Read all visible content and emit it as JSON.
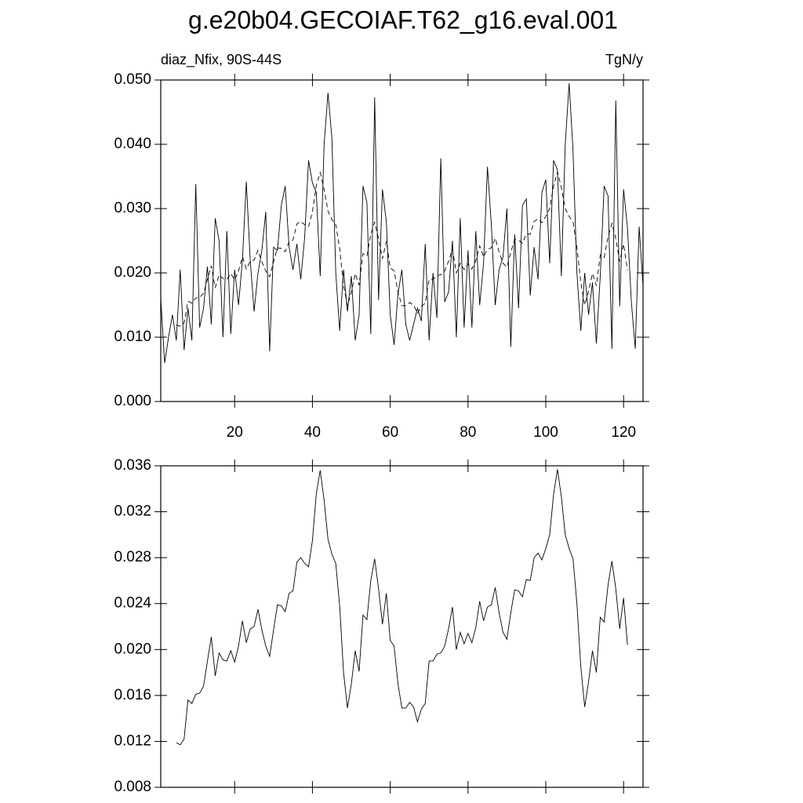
{
  "chart_data": [
    {
      "type": "line",
      "title": "g.e20b04.GECOIAF.T62_g16.eval.001",
      "subtitle": "diaz_Nfix, 90S-44S",
      "units": "TgN/y",
      "x": [
        1,
        2,
        3,
        4,
        5,
        6,
        7,
        8,
        9,
        10,
        11,
        12,
        13,
        14,
        15,
        16,
        17,
        18,
        19,
        20,
        21,
        22,
        23,
        24,
        25,
        26,
        27,
        28,
        29,
        30,
        31,
        32,
        33,
        34,
        35,
        36,
        37,
        38,
        39,
        40,
        41,
        42,
        43,
        44,
        45,
        46,
        47,
        48,
        49,
        50,
        51,
        52,
        53,
        54,
        55,
        56,
        57,
        58,
        59,
        60,
        61,
        62,
        63,
        64,
        65,
        66,
        67,
        68,
        69,
        70,
        71,
        72,
        73,
        74,
        75,
        76,
        77,
        78,
        79,
        80,
        81,
        82,
        83,
        84,
        85,
        86,
        87,
        88,
        89,
        90,
        91,
        92,
        93,
        94,
        95,
        96,
        97,
        98,
        99,
        100,
        101,
        102,
        103,
        104,
        105,
        106,
        107,
        108,
        109,
        110,
        111,
        112,
        113,
        114,
        115,
        116,
        117,
        118,
        119,
        120,
        121,
        122,
        123,
        124,
        125
      ],
      "xlim": [
        1,
        125
      ],
      "xticks": [
        20,
        40,
        60,
        80,
        100,
        120
      ],
      "ylim": [
        0,
        0.05
      ],
      "yticks": [
        {
          "value": 0,
          "label": "0.000"
        },
        {
          "value": 0.01,
          "label": "0.010"
        },
        {
          "value": 0.02,
          "label": "0.020"
        },
        {
          "value": 0.03,
          "label": "0.030"
        },
        {
          "value": 0.04,
          "label": "0.040"
        },
        {
          "value": 0.05,
          "label": "0.050"
        }
      ],
      "series": [
        {
          "color": "#000000",
          "dash": "solid",
          "values": [
            0.016,
            0.006,
            0.01,
            0.0135,
            0.0095,
            0.0205,
            0.008,
            0.0145,
            0.0095,
            0.0338,
            0.0115,
            0.0145,
            0.021,
            0.012,
            0.0285,
            0.025,
            0.01,
            0.0265,
            0.0105,
            0.0205,
            0.015,
            0.022,
            0.0342,
            0.022,
            0.014,
            0.02,
            0.0235,
            0.0295,
            0.0078,
            0.024,
            0.0235,
            0.0305,
            0.0335,
            0.024,
            0.0205,
            0.0245,
            0.019,
            0.0255,
            0.0375,
            0.034,
            0.0325,
            0.0195,
            0.04,
            0.048,
            0.041,
            0.02,
            0.011,
            0.0205,
            0.014,
            0.0195,
            0.0095,
            0.0135,
            0.0335,
            0.031,
            0.0105,
            0.0473,
            0.0158,
            0.033,
            0.028,
            0.0135,
            0.0088,
            0.0168,
            0.0205,
            0.012,
            0.0095,
            0.012,
            0.0145,
            0.0125,
            0.0245,
            0.0095,
            0.02,
            0.013,
            0.0378,
            0.0155,
            0.017,
            0.025,
            0.01,
            0.0285,
            0.0115,
            0.0235,
            0.0115,
            0.0265,
            0.015,
            0.0215,
            0.0365,
            0.0275,
            0.015,
            0.0205,
            0.0225,
            0.03,
            0.0085,
            0.026,
            0.0145,
            0.0305,
            0.0315,
            0.0165,
            0.024,
            0.019,
            0.0325,
            0.0345,
            0.0215,
            0.0375,
            0.036,
            0.0195,
            0.04,
            0.0495,
            0.039,
            0.02,
            0.011,
            0.02,
            0.0135,
            0.0185,
            0.009,
            0.0195,
            0.0335,
            0.032,
            0.0082,
            0.0468,
            0.0148,
            0.033,
            0.027,
            0.0155,
            0.0082,
            0.0272,
            0.018
          ]
        },
        {
          "color": "#000000",
          "dash": "dashed",
          "values": [
            null,
            null,
            null,
            null,
            0.0119,
            0.0117,
            0.0122,
            0.0156,
            0.0153,
            0.0161,
            0.0162,
            0.0168,
            0.019,
            0.0211,
            0.0177,
            0.0197,
            0.0191,
            0.019,
            0.0199,
            0.0189,
            0.0203,
            0.0225,
            0.0206,
            0.0218,
            0.022,
            0.0235,
            0.0217,
            0.0203,
            0.0194,
            0.0217,
            0.0239,
            0.0238,
            0.0233,
            0.0249,
            0.0251,
            0.0276,
            0.028,
            0.0275,
            0.0272,
            0.0295,
            0.0336,
            0.0356,
            0.033,
            0.0296,
            0.0283,
            0.0275,
            0.0238,
            0.018,
            0.0149,
            0.017,
            0.0199,
            0.0181,
            0.023,
            0.0226,
            0.026,
            0.0279,
            0.0253,
            0.0222,
            0.0249,
            0.0208,
            0.0203,
            0.017,
            0.0149,
            0.0149,
            0.0154,
            0.015,
            0.0137,
            0.0148,
            0.0153,
            0.019,
            0.019,
            0.0196,
            0.0197,
            0.0203,
            0.0218,
            0.0237,
            0.02,
            0.0215,
            0.0205,
            0.0214,
            0.0206,
            0.0219,
            0.0242,
            0.0225,
            0.0237,
            0.0239,
            0.0254,
            0.0232,
            0.0215,
            0.0209,
            0.0232,
            0.0252,
            0.0251,
            0.0246,
            0.0261,
            0.026,
            0.028,
            0.0284,
            0.0278,
            0.0288,
            0.03,
            0.0335,
            0.0357,
            0.0333,
            0.03,
            0.0288,
            0.0279,
            0.024,
            0.0185,
            0.015,
            0.0172,
            0.0199,
            0.018,
            0.0228,
            0.0224,
            0.0256,
            0.0277,
            0.0253,
            0.0218,
            0.0245,
            0.0204,
            null,
            null,
            null,
            null
          ]
        }
      ]
    },
    {
      "type": "line",
      "x": [
        1,
        2,
        3,
        4,
        5,
        6,
        7,
        8,
        9,
        10,
        11,
        12,
        13,
        14,
        15,
        16,
        17,
        18,
        19,
        20,
        21,
        22,
        23,
        24,
        25,
        26,
        27,
        28,
        29,
        30,
        31,
        32,
        33,
        34,
        35,
        36,
        37,
        38,
        39,
        40,
        41,
        42,
        43,
        44,
        45,
        46,
        47,
        48,
        49,
        50,
        51,
        52,
        53,
        54,
        55,
        56,
        57,
        58,
        59,
        60,
        61,
        62,
        63,
        64,
        65,
        66,
        67,
        68,
        69,
        70,
        71,
        72,
        73,
        74,
        75,
        76,
        77,
        78,
        79,
        80,
        81,
        82,
        83,
        84,
        85,
        86,
        87,
        88,
        89,
        90,
        91,
        92,
        93,
        94,
        95,
        96,
        97,
        98,
        99,
        100,
        101,
        102,
        103,
        104,
        105,
        106,
        107,
        108,
        109,
        110,
        111,
        112,
        113,
        114,
        115,
        116,
        117,
        118,
        119,
        120,
        121,
        122,
        123,
        124,
        125
      ],
      "xlim": [
        1,
        125
      ],
      "ylim": [
        0.008,
        0.036
      ],
      "yticks": [
        0.008,
        0.012,
        0.016,
        {
          "value": 0.02,
          "label": "0.020"
        },
        0.024,
        0.028,
        0.032,
        0.036
      ],
      "series": [
        {
          "color": "#000000",
          "dash": "solid",
          "values": [
            null,
            null,
            null,
            null,
            0.0119,
            0.0117,
            0.0122,
            0.0156,
            0.0153,
            0.0161,
            0.0162,
            0.0168,
            0.019,
            0.0211,
            0.0177,
            0.0197,
            0.0191,
            0.019,
            0.0199,
            0.0189,
            0.0203,
            0.0225,
            0.0206,
            0.0218,
            0.022,
            0.0235,
            0.0217,
            0.0203,
            0.0194,
            0.0217,
            0.0239,
            0.0238,
            0.0233,
            0.0249,
            0.0251,
            0.0276,
            0.028,
            0.0275,
            0.0272,
            0.0295,
            0.0336,
            0.0356,
            0.033,
            0.0296,
            0.0283,
            0.0275,
            0.0238,
            0.018,
            0.0149,
            0.017,
            0.0199,
            0.0181,
            0.023,
            0.0226,
            0.026,
            0.0279,
            0.0253,
            0.0222,
            0.0249,
            0.0208,
            0.0203,
            0.017,
            0.0149,
            0.0149,
            0.0154,
            0.015,
            0.0137,
            0.0148,
            0.0153,
            0.019,
            0.019,
            0.0196,
            0.0197,
            0.0203,
            0.0218,
            0.0237,
            0.02,
            0.0215,
            0.0205,
            0.0214,
            0.0206,
            0.0219,
            0.0242,
            0.0225,
            0.0237,
            0.0239,
            0.0254,
            0.0232,
            0.0215,
            0.0209,
            0.0232,
            0.0252,
            0.0251,
            0.0246,
            0.0261,
            0.026,
            0.028,
            0.0284,
            0.0278,
            0.0288,
            0.03,
            0.0335,
            0.0357,
            0.0333,
            0.03,
            0.0288,
            0.0279,
            0.024,
            0.0185,
            0.015,
            0.0172,
            0.0199,
            0.018,
            0.0228,
            0.0224,
            0.0256,
            0.0277,
            0.0253,
            0.0218,
            0.0245,
            0.0204,
            null,
            null,
            null,
            null
          ]
        }
      ]
    }
  ]
}
